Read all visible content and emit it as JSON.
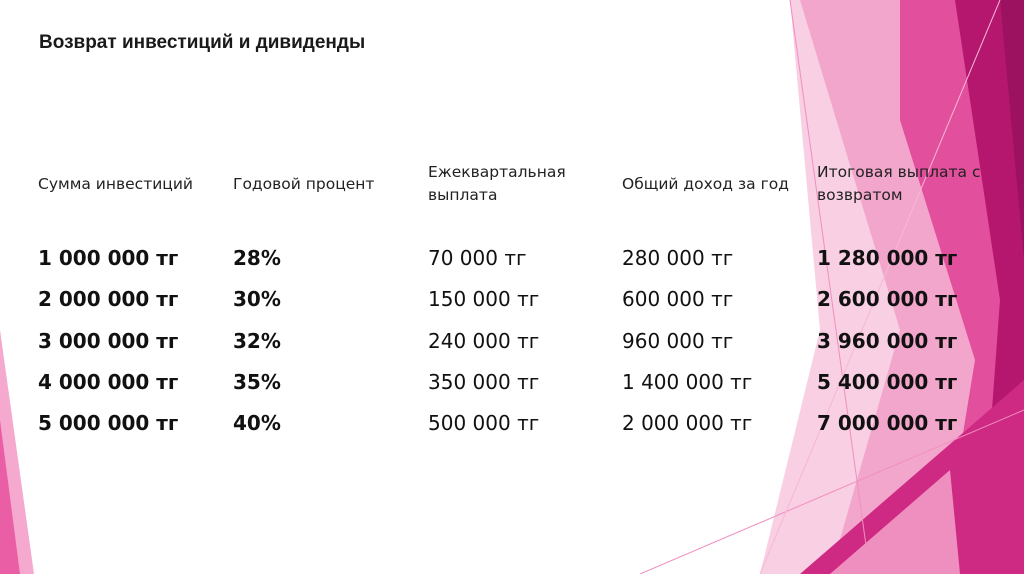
{
  "slide": {
    "title": "Возврат инвестиций и дивиденды",
    "headers": [
      "Сумма инвестиций",
      "Годовой процент",
      "Ежеквартальная выплата",
      "Общий доход за год",
      "Итоговая выплата с возвратом"
    ],
    "rows": [
      [
        "1 000 000 тг",
        "28%",
        "70 000 тг",
        "280 000 тг",
        "1 280 000 тг"
      ],
      [
        "2 000 000 тг",
        "30%",
        "150 000 тг",
        "600 000 тг",
        "2 600 000 тг"
      ],
      [
        "3 000 000 тг",
        "32%",
        "240 000 тг",
        "960 000 тг",
        "3 960 000 тг"
      ],
      [
        "4 000 000 тг",
        "35%",
        "350 000 тг",
        "1 400 000 тг",
        "5 400 000 тг"
      ],
      [
        "5 000 000 тг",
        "40%",
        "500 000 тг",
        "2 000 000 тг",
        "7 000 000 тг"
      ]
    ]
  },
  "colors": {
    "accent_dark": "#b5176f",
    "accent_mid": "#d92f8b",
    "accent_light": "#f08fc0",
    "accent_pale": "#f9cfe3"
  }
}
